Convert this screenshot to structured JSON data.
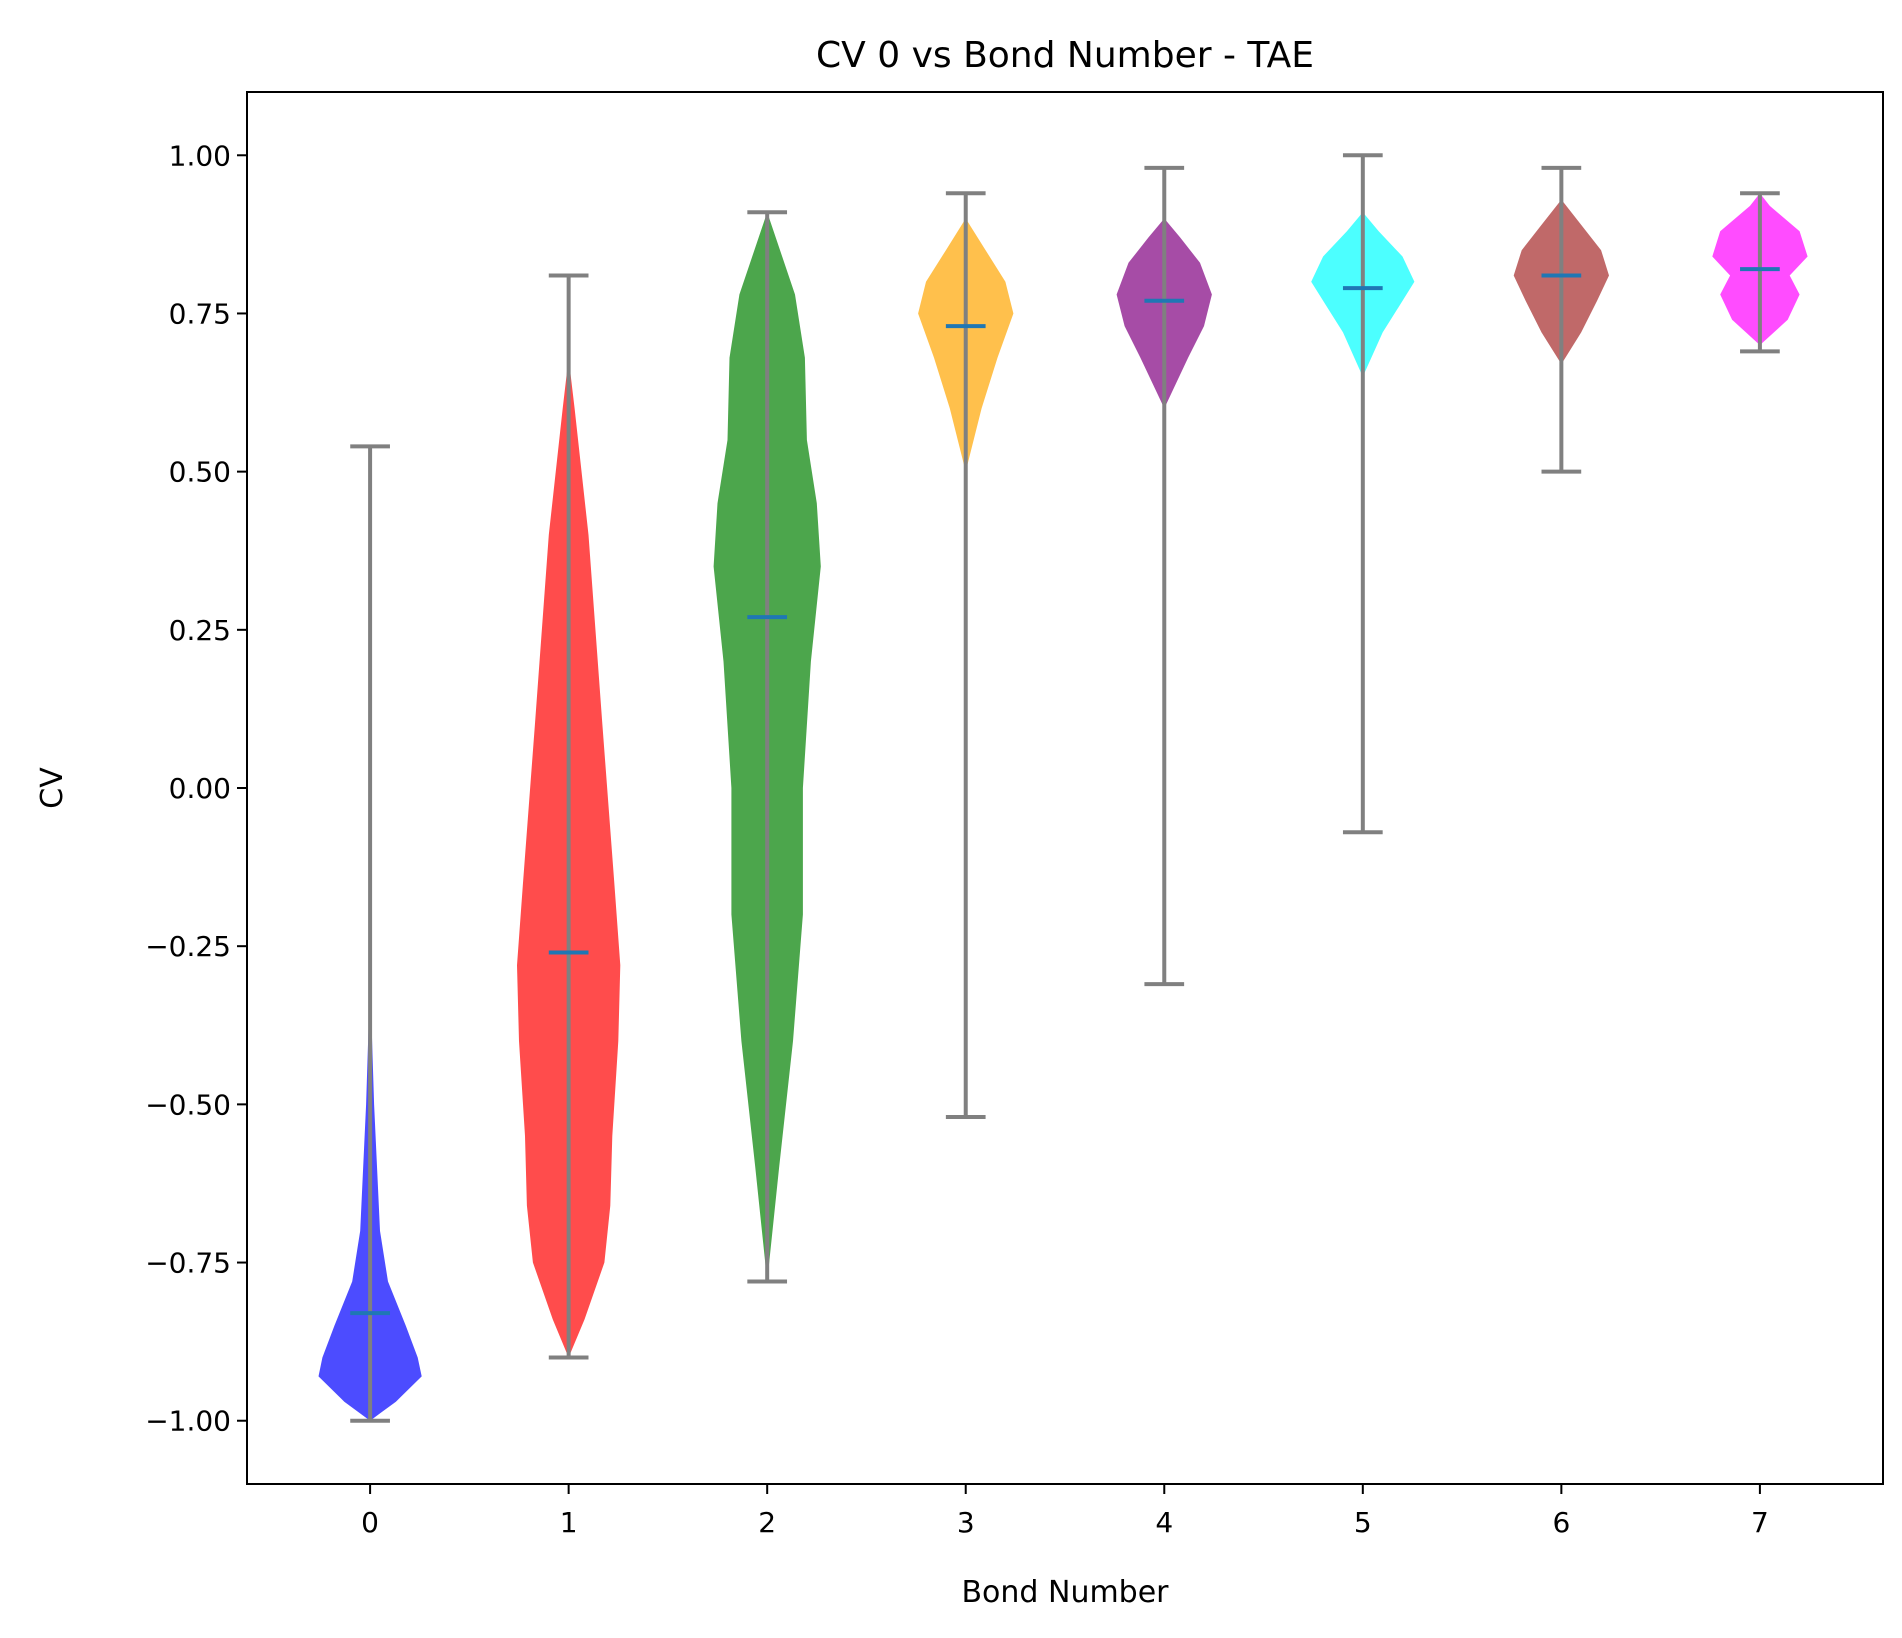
{
  "chart_data": {
    "type": "violin",
    "title": "CV 0 vs Bond Number - TAE",
    "xlabel": "Bond Number",
    "ylabel": "CV",
    "ylim": [
      -1.1,
      1.1
    ],
    "xlim": [
      -0.62,
      7.62
    ],
    "yticks": [
      1.0,
      0.75,
      0.5,
      0.25,
      0.0,
      -0.25,
      -0.5,
      -0.75,
      -1.0
    ],
    "ytick_labels": [
      "1.00",
      "0.75",
      "0.50",
      "0.25",
      "0.00",
      "−0.25",
      "−0.50",
      "−0.75",
      "−1.00"
    ],
    "categories": [
      "0",
      "1",
      "2",
      "3",
      "4",
      "5",
      "6",
      "7"
    ],
    "whisker_color": "#808080",
    "median_color": "#1f77b4",
    "violins": [
      {
        "x": 0,
        "color": "#0000ff",
        "min": -1.0,
        "max": 0.54,
        "median": -0.83,
        "density": [
          [
            -1.0,
            0.0
          ],
          [
            -0.97,
            0.13
          ],
          [
            -0.93,
            0.26
          ],
          [
            -0.9,
            0.24
          ],
          [
            -0.85,
            0.18
          ],
          [
            -0.78,
            0.09
          ],
          [
            -0.7,
            0.05
          ],
          [
            -0.5,
            0.02
          ],
          [
            -0.3,
            0.0
          ]
        ]
      },
      {
        "x": 1,
        "color": "#ff0000",
        "min": -0.9,
        "max": 0.81,
        "median": -0.26,
        "density": [
          [
            -0.9,
            0.0
          ],
          [
            -0.84,
            0.08
          ],
          [
            -0.75,
            0.18
          ],
          [
            -0.66,
            0.21
          ],
          [
            -0.55,
            0.22
          ],
          [
            -0.4,
            0.25
          ],
          [
            -0.28,
            0.26
          ],
          [
            -0.15,
            0.23
          ],
          [
            0.1,
            0.17
          ],
          [
            0.4,
            0.1
          ],
          [
            0.6,
            0.03
          ],
          [
            0.68,
            0.0
          ]
        ]
      },
      {
        "x": 2,
        "color": "#008000",
        "min": -0.78,
        "max": 0.91,
        "median": 0.27,
        "density": [
          [
            -0.78,
            0.0
          ],
          [
            -0.6,
            0.06
          ],
          [
            -0.4,
            0.13
          ],
          [
            -0.2,
            0.18
          ],
          [
            0.0,
            0.18
          ],
          [
            0.2,
            0.22
          ],
          [
            0.35,
            0.27
          ],
          [
            0.45,
            0.25
          ],
          [
            0.55,
            0.2
          ],
          [
            0.68,
            0.19
          ],
          [
            0.78,
            0.14
          ],
          [
            0.91,
            0.0
          ]
        ]
      },
      {
        "x": 3,
        "color": "#ffa500",
        "min": -0.52,
        "max": 0.94,
        "median": 0.73,
        "density": [
          [
            0.5,
            0.0
          ],
          [
            0.6,
            0.08
          ],
          [
            0.68,
            0.16
          ],
          [
            0.75,
            0.24
          ],
          [
            0.8,
            0.2
          ],
          [
            0.85,
            0.1
          ],
          [
            0.9,
            0.0
          ]
        ]
      },
      {
        "x": 4,
        "color": "#800080",
        "min": -0.31,
        "max": 0.98,
        "median": 0.77,
        "density": [
          [
            0.6,
            0.0
          ],
          [
            0.68,
            0.12
          ],
          [
            0.73,
            0.2
          ],
          [
            0.78,
            0.24
          ],
          [
            0.83,
            0.18
          ],
          [
            0.87,
            0.08
          ],
          [
            0.9,
            0.0
          ]
        ]
      },
      {
        "x": 5,
        "color": "#00ffff",
        "min": -0.07,
        "max": 1.0,
        "median": 0.79,
        "density": [
          [
            0.65,
            0.0
          ],
          [
            0.72,
            0.1
          ],
          [
            0.76,
            0.18
          ],
          [
            0.8,
            0.26
          ],
          [
            0.84,
            0.2
          ],
          [
            0.88,
            0.08
          ],
          [
            0.91,
            0.0
          ]
        ]
      },
      {
        "x": 6,
        "color": "#a52a2a",
        "min": 0.5,
        "max": 0.98,
        "median": 0.81,
        "density": [
          [
            0.67,
            0.0
          ],
          [
            0.72,
            0.1
          ],
          [
            0.77,
            0.18
          ],
          [
            0.81,
            0.24
          ],
          [
            0.85,
            0.2
          ],
          [
            0.89,
            0.1
          ],
          [
            0.93,
            0.0
          ]
        ]
      },
      {
        "x": 7,
        "color": "#ff00ff",
        "min": 0.69,
        "max": 0.94,
        "median": 0.82,
        "density": [
          [
            0.7,
            0.0
          ],
          [
            0.74,
            0.14
          ],
          [
            0.78,
            0.2
          ],
          [
            0.81,
            0.15
          ],
          [
            0.84,
            0.24
          ],
          [
            0.88,
            0.2
          ],
          [
            0.92,
            0.05
          ],
          [
            0.94,
            0.0
          ]
        ]
      }
    ]
  }
}
